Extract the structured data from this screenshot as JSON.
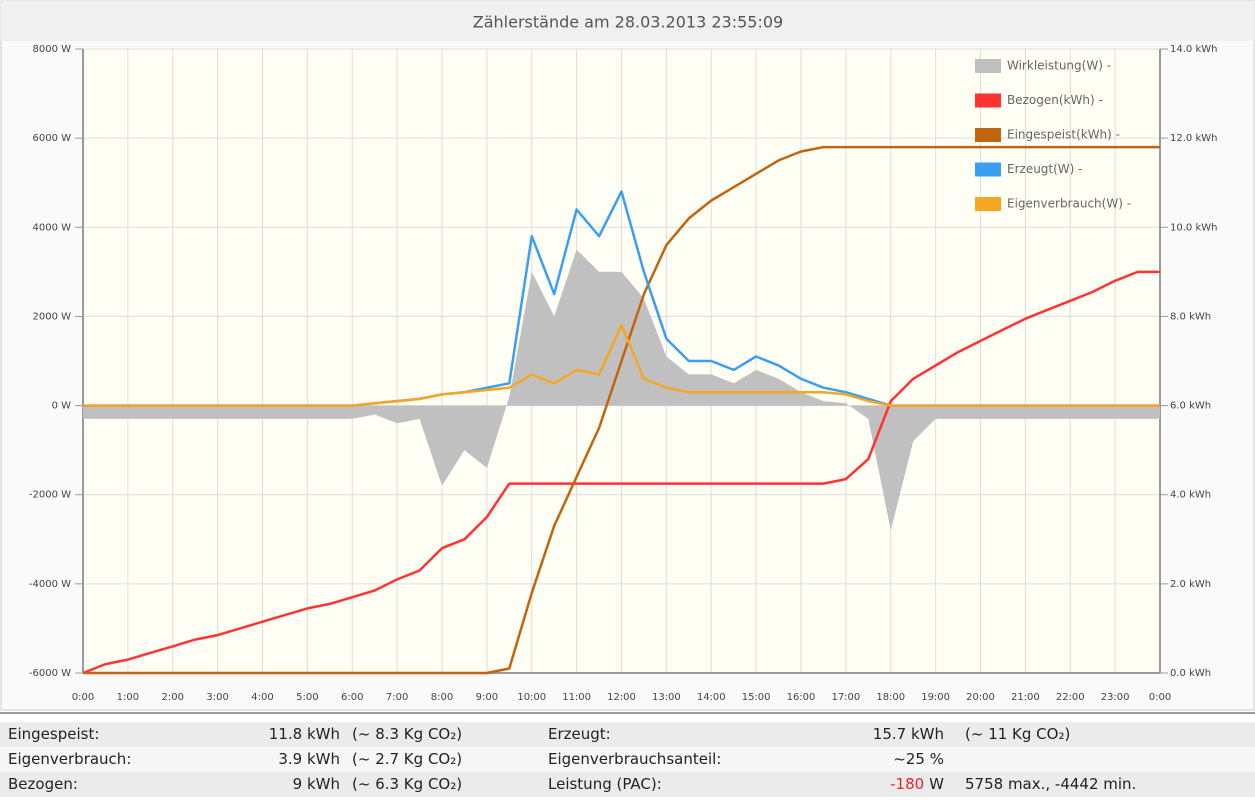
{
  "chart_data": {
    "type": "line",
    "title": "Zählerstände am 28.03.2013 23:55:09",
    "x": [
      0,
      0.5,
      1,
      1.5,
      2,
      2.5,
      3,
      3.5,
      4,
      4.5,
      5,
      5.5,
      6,
      6.5,
      7,
      7.5,
      8,
      8.5,
      9,
      9.5,
      10,
      10.5,
      11,
      11.5,
      12,
      12.5,
      13,
      13.5,
      14,
      14.5,
      15,
      15.5,
      16,
      16.5,
      17,
      17.5,
      18,
      18.5,
      19,
      19.5,
      20,
      20.5,
      21,
      21.5,
      22,
      22.5,
      23,
      23.5,
      24
    ],
    "xlim": [
      0,
      24
    ],
    "xticks": [
      {
        "value": 0,
        "label": "0:00"
      },
      {
        "value": 1,
        "label": "1:00"
      },
      {
        "value": 2,
        "label": "2:00"
      },
      {
        "value": 3,
        "label": "3:00"
      },
      {
        "value": 4,
        "label": "4:00"
      },
      {
        "value": 5,
        "label": "5:00"
      },
      {
        "value": 6,
        "label": "6:00"
      },
      {
        "value": 7,
        "label": "7:00"
      },
      {
        "value": 8,
        "label": "8:00"
      },
      {
        "value": 9,
        "label": "9:00"
      },
      {
        "value": 10,
        "label": "10:00"
      },
      {
        "value": 11,
        "label": "11:00"
      },
      {
        "value": 12,
        "label": "12:00"
      },
      {
        "value": 13,
        "label": "13:00"
      },
      {
        "value": 14,
        "label": "14:00"
      },
      {
        "value": 15,
        "label": "15:00"
      },
      {
        "value": 16,
        "label": "16:00"
      },
      {
        "value": 17,
        "label": "17:00"
      },
      {
        "value": 18,
        "label": "18:00"
      },
      {
        "value": 19,
        "label": "19:00"
      },
      {
        "value": 20,
        "label": "20:00"
      },
      {
        "value": 21,
        "label": "21:00"
      },
      {
        "value": 22,
        "label": "22:00"
      },
      {
        "value": 23,
        "label": "23:00"
      },
      {
        "value": 24,
        "label": "0:00"
      }
    ],
    "ylim": [
      -6000,
      8000
    ],
    "yticks": [
      {
        "value": -6000,
        "label": "-6000 W"
      },
      {
        "value": -4000,
        "label": "-4000 W"
      },
      {
        "value": -2000,
        "label": "-2000 W"
      },
      {
        "value": 0,
        "label": "0 W"
      },
      {
        "value": 2000,
        "label": "2000 W"
      },
      {
        "value": 4000,
        "label": "4000 W"
      },
      {
        "value": 6000,
        "label": "6000 W"
      },
      {
        "value": 8000,
        "label": "8000 W"
      }
    ],
    "y2lim": [
      0,
      14
    ],
    "y2ticks": [
      {
        "value": 0,
        "label": "0.0 kWh"
      },
      {
        "value": 2,
        "label": "2.0 kWh"
      },
      {
        "value": 4,
        "label": "4.0 kWh"
      },
      {
        "value": 6,
        "label": "6.0 kWh"
      },
      {
        "value": 8,
        "label": "8.0 kWh"
      },
      {
        "value": 10,
        "label": "10.0 kWh"
      },
      {
        "value": 12,
        "label": "12.0 kWh"
      },
      {
        "value": 14,
        "label": "14.0 kWh"
      }
    ],
    "grid": true,
    "legend": "top-right",
    "series": [
      {
        "name": "Wirkleistung(W) -",
        "color": "#c0c0c0",
        "type": "area",
        "values": [
          -300,
          -300,
          -300,
          -300,
          -300,
          -300,
          -300,
          -300,
          -300,
          -300,
          -300,
          -300,
          -300,
          -200,
          -400,
          -300,
          -1800,
          -1000,
          -1400,
          200,
          3000,
          2000,
          3500,
          3000,
          3000,
          2400,
          1100,
          700,
          700,
          500,
          800,
          600,
          300,
          100,
          50,
          -300,
          -2800,
          -800,
          -300,
          -300,
          -300,
          -300,
          -300,
          -300,
          -300,
          -300,
          -300,
          -300,
          -300
        ]
      },
      {
        "name": "Bezogen(kWh) -",
        "color": "#ff3333",
        "axis": "y2",
        "values": [
          0,
          0.2,
          0.3,
          0.45,
          0.6,
          0.75,
          0.85,
          1.0,
          1.15,
          1.3,
          1.45,
          1.55,
          1.7,
          1.85,
          2.1,
          2.3,
          2.8,
          3.0,
          3.5,
          4.25,
          4.25,
          4.25,
          4.25,
          4.25,
          4.25,
          4.25,
          4.25,
          4.25,
          4.25,
          4.25,
          4.25,
          4.25,
          4.25,
          4.25,
          4.35,
          4.8,
          6.1,
          6.6,
          6.9,
          7.2,
          7.45,
          7.7,
          7.95,
          8.15,
          8.35,
          8.55,
          8.8,
          9.0,
          9.0
        ]
      },
      {
        "name": "Eingespeist(kWh) -",
        "color": "#c0650f",
        "axis": "y2",
        "values": [
          0,
          0,
          0,
          0,
          0,
          0,
          0,
          0,
          0,
          0,
          0,
          0,
          0,
          0,
          0,
          0,
          0,
          0,
          0,
          0.1,
          1.8,
          3.3,
          4.4,
          5.5,
          7.0,
          8.5,
          9.6,
          10.2,
          10.6,
          10.9,
          11.2,
          11.5,
          11.7,
          11.8,
          11.8,
          11.8,
          11.8,
          11.8,
          11.8,
          11.8,
          11.8,
          11.8,
          11.8,
          11.8,
          11.8,
          11.8,
          11.8,
          11.8,
          11.8
        ]
      },
      {
        "name": "Erzeugt(W) -",
        "color": "#3a9ff0",
        "values": [
          0,
          0,
          0,
          0,
          0,
          0,
          0,
          0,
          0,
          0,
          0,
          0,
          0,
          50,
          100,
          150,
          250,
          300,
          400,
          500,
          3800,
          2500,
          4400,
          3800,
          4800,
          3000,
          1500,
          1000,
          1000,
          800,
          1100,
          900,
          600,
          400,
          300,
          150,
          0,
          0,
          0,
          0,
          0,
          0,
          0,
          0,
          0,
          0,
          0,
          0,
          0
        ]
      },
      {
        "name": "Eigenverbrauch(W) -",
        "color": "#f5a623",
        "values": [
          0,
          0,
          0,
          0,
          0,
          0,
          0,
          0,
          0,
          0,
          0,
          0,
          0,
          50,
          100,
          150,
          250,
          300,
          350,
          400,
          700,
          500,
          800,
          700,
          1800,
          600,
          400,
          300,
          300,
          300,
          300,
          300,
          300,
          300,
          250,
          100,
          0,
          0,
          0,
          0,
          0,
          0,
          0,
          0,
          0,
          0,
          0,
          0,
          0
        ]
      }
    ]
  },
  "table": {
    "rows": [
      [
        "Eingespeist:",
        "11.8 kWh",
        "(~ 8.3 Kg CO₂)",
        "Erzeugt:",
        "15.7 kWh",
        "(~ 11 Kg CO₂)"
      ],
      [
        "Eigenverbrauch:",
        "3.9 kWh",
        "(~ 2.7 Kg CO₂)",
        "Eigenverbrauchsanteil:",
        "~25 %"
      ],
      [
        "Bezogen:",
        "9 kWh",
        "(~ 6.3 Kg CO₂)",
        "Leistung (PAC):",
        [
          "-180",
          "W"
        ],
        "5758 max., -4442 min."
      ]
    ]
  }
}
